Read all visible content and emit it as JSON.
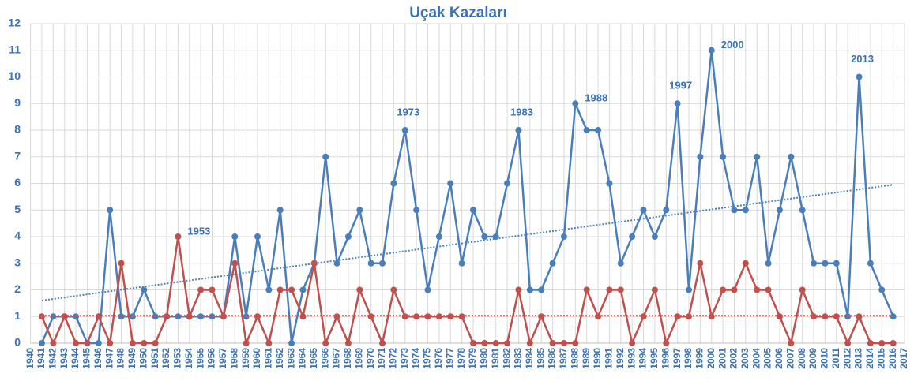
{
  "chart_data": {
    "type": "line",
    "title": "Uçak Kazaları",
    "xlim": [
      1940,
      2017
    ],
    "xticks": [
      1940,
      1941,
      1942,
      1943,
      1944,
      1945,
      1946,
      1947,
      1948,
      1949,
      1950,
      1951,
      1952,
      1953,
      1954,
      1955,
      1956,
      1957,
      1958,
      1959,
      1960,
      1961,
      1962,
      1963,
      1964,
      1965,
      1966,
      1967,
      1968,
      1969,
      1970,
      1971,
      1972,
      1973,
      1974,
      1975,
      1976,
      1977,
      1978,
      1979,
      1980,
      1981,
      1982,
      1983,
      1984,
      1985,
      1986,
      1987,
      1988,
      1989,
      1990,
      1991,
      1992,
      1993,
      1994,
      1995,
      1996,
      1997,
      1998,
      1999,
      2000,
      2001,
      2002,
      2003,
      2004,
      2005,
      2006,
      2007,
      2008,
      2009,
      2010,
      2011,
      2012,
      2013,
      2014,
      2015,
      2016,
      2017
    ],
    "ylim": [
      0,
      12
    ],
    "yticks": [
      0,
      1,
      2,
      3,
      4,
      5,
      6,
      7,
      8,
      9,
      10,
      11,
      12
    ],
    "grid": true,
    "x": [
      1941,
      1942,
      1943,
      1944,
      1945,
      1946,
      1947,
      1948,
      1949,
      1950,
      1951,
      1952,
      1953,
      1954,
      1955,
      1956,
      1957,
      1958,
      1959,
      1960,
      1961,
      1962,
      1963,
      1964,
      1965,
      1966,
      1967,
      1968,
      1969,
      1970,
      1971,
      1972,
      1973,
      1974,
      1975,
      1976,
      1977,
      1978,
      1979,
      1980,
      1981,
      1982,
      1983,
      1984,
      1985,
      1986,
      1987,
      1988,
      1989,
      1990,
      1991,
      1992,
      1993,
      1994,
      1995,
      1996,
      1997,
      1998,
      1999,
      2000,
      2001,
      2002,
      2003,
      2004,
      2005,
      2006,
      2007,
      2008,
      2009,
      2010,
      2011,
      2012,
      2013,
      2014,
      2015,
      2016
    ],
    "series": [
      {
        "color": "#4a7ebb",
        "trend": [
          1.6,
          5.95
        ],
        "values": [
          0,
          1,
          1,
          1,
          0,
          0,
          5,
          1,
          1,
          2,
          1,
          1,
          1,
          1,
          1,
          1,
          1,
          4,
          1,
          4,
          2,
          5,
          0,
          2,
          3,
          7,
          3,
          4,
          5,
          3,
          3,
          6,
          8,
          5,
          2,
          4,
          6,
          3,
          5,
          4,
          4,
          6,
          8,
          2,
          2,
          3,
          4,
          9,
          8,
          8,
          6,
          3,
          4,
          5,
          4,
          5,
          9,
          2,
          7,
          11,
          7,
          5,
          5,
          7,
          3,
          5,
          7,
          5,
          3,
          3,
          3,
          1,
          10,
          3,
          2,
          1
        ]
      },
      {
        "color": "#c0504d",
        "trend": [
          1.03,
          1.03
        ],
        "values": [
          1,
          0,
          1,
          0,
          0,
          1,
          0,
          3,
          0,
          0,
          0,
          1,
          4,
          1,
          2,
          2,
          1,
          3,
          0,
          1,
          0,
          2,
          2,
          1,
          3,
          0,
          1,
          0,
          2,
          1,
          0,
          2,
          1,
          1,
          1,
          1,
          1,
          1,
          0,
          0,
          0,
          0,
          2,
          0,
          1,
          0,
          0,
          0,
          2,
          1,
          2,
          2,
          0,
          1,
          2,
          0,
          1,
          1,
          3,
          1,
          2,
          2,
          3,
          2,
          2,
          1,
          0,
          2,
          1,
          1,
          1,
          0,
          1,
          0,
          0,
          0
        ]
      }
    ],
    "annotations": [
      {
        "text": "1953",
        "x": 1953,
        "series": 1,
        "position": "right"
      },
      {
        "text": "1973",
        "x": 1973,
        "series": 0,
        "position": "above"
      },
      {
        "text": "1983",
        "x": 1983,
        "series": 0,
        "position": "above"
      },
      {
        "text": "1988",
        "x": 1988,
        "series": 0,
        "position": "right"
      },
      {
        "text": "1997",
        "x": 1997,
        "series": 0,
        "position": "above"
      },
      {
        "text": "2000",
        "x": 2000,
        "series": 0,
        "position": "right"
      },
      {
        "text": "2013",
        "x": 2013,
        "series": 0,
        "position": "above"
      }
    ]
  }
}
